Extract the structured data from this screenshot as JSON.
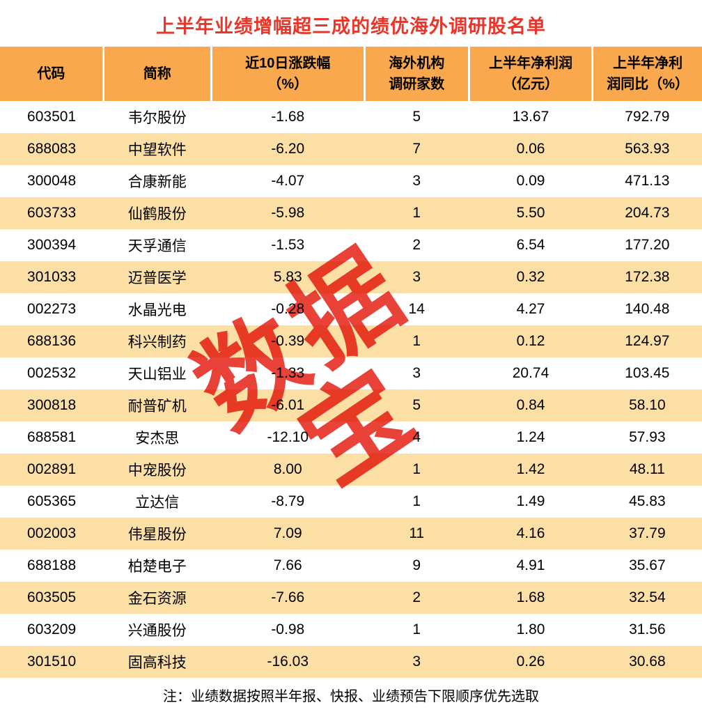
{
  "chart_data": {
    "type": "table",
    "title": "上半年业绩增幅超三成的绩优海外调研股名单",
    "watermark": "数据宝",
    "note": "注：业绩数据按照半年报、快报、业绩预告下限顺序优先选取",
    "columns": [
      "代码",
      "简称",
      "近10日涨跌幅（%）",
      "海外机构调研家数",
      "上半年净利润（亿元）",
      "上半年净利润同比（%）"
    ],
    "column_header_lines": [
      [
        "代码"
      ],
      [
        "简称"
      ],
      [
        "近10日涨跌幅",
        "（%）"
      ],
      [
        "海外机构",
        "调研家数"
      ],
      [
        "上半年净利润",
        "（亿元）"
      ],
      [
        "上半年净利",
        "润同比（%）"
      ]
    ],
    "column_keys": [
      "code",
      "name",
      "change10d",
      "institutions",
      "profit",
      "yoy"
    ],
    "rows": [
      [
        "603501",
        "韦尔股份",
        "-1.68",
        "5",
        "13.67",
        "792.79"
      ],
      [
        "688083",
        "中望软件",
        "-6.20",
        "7",
        "0.06",
        "563.93"
      ],
      [
        "300048",
        "合康新能",
        "-4.07",
        "3",
        "0.09",
        "471.13"
      ],
      [
        "603733",
        "仙鹤股份",
        "-5.98",
        "1",
        "5.50",
        "204.73"
      ],
      [
        "300394",
        "天孚通信",
        "-1.53",
        "2",
        "6.54",
        "177.20"
      ],
      [
        "301033",
        "迈普医学",
        "5.83",
        "3",
        "0.32",
        "172.38"
      ],
      [
        "002273",
        "水晶光电",
        "-0.28",
        "14",
        "4.27",
        "140.48"
      ],
      [
        "688136",
        "科兴制药",
        "-0.39",
        "1",
        "0.12",
        "124.97"
      ],
      [
        "002532",
        "天山铝业",
        "-1.33",
        "3",
        "20.74",
        "103.45"
      ],
      [
        "300818",
        "耐普矿机",
        "-6.01",
        "5",
        "0.84",
        "58.10"
      ],
      [
        "688581",
        "安杰思",
        "-12.10",
        "4",
        "1.24",
        "57.93"
      ],
      [
        "002891",
        "中宠股份",
        "8.00",
        "1",
        "1.42",
        "48.11"
      ],
      [
        "605365",
        "立达信",
        "-8.79",
        "1",
        "1.49",
        "45.83"
      ],
      [
        "002003",
        "伟星股份",
        "7.09",
        "11",
        "4.16",
        "37.79"
      ],
      [
        "688188",
        "柏楚电子",
        "7.66",
        "9",
        "4.91",
        "35.67"
      ],
      [
        "603505",
        "金石资源",
        "-7.66",
        "2",
        "1.68",
        "32.54"
      ],
      [
        "603209",
        "兴通股份",
        "-0.98",
        "1",
        "1.80",
        "31.56"
      ],
      [
        "301510",
        "固高科技",
        "-16.03",
        "3",
        "0.26",
        "30.68"
      ]
    ]
  },
  "colors": {
    "title_red": "#E8362A",
    "header_bg": "#F9A84D",
    "row_alt_bg": "#FCDFA4",
    "watermark_red": "#E6281E"
  }
}
